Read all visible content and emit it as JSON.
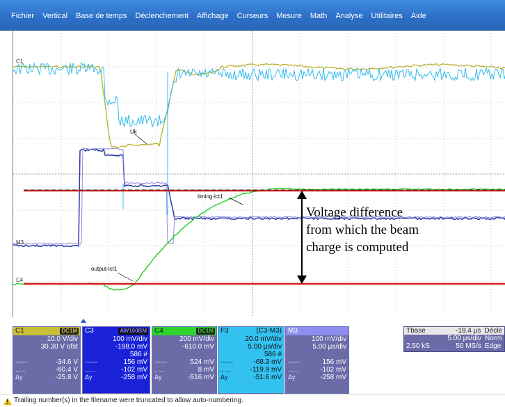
{
  "menu": [
    "Fichier",
    "Vertical",
    "Base de temps",
    "Déclenchement",
    "Affichage",
    "Curseurs",
    "Mesure",
    "Math",
    "Analyse",
    "Utilitaires",
    "Aide"
  ],
  "screen": {
    "channel_markers": {
      "c1": "C1",
      "m3": "M3",
      "c4": "C4"
    },
    "trace_labels": {
      "uk": "Uk",
      "timing": "timing-ict1",
      "output": "output-ict1"
    },
    "annotation": [
      "Voltage difference",
      "from which the beam",
      "charge is computed"
    ],
    "colors": {
      "c1": "#b8b02a",
      "c3": "#33bbee",
      "m3": "#2a3aa8",
      "m3_light": "#8b8be0",
      "c4": "#22cc22",
      "red": "#d42020",
      "grid": "#c8c8c8"
    }
  },
  "panels": {
    "c1": {
      "name": "C1",
      "badge": "DC1M",
      "rows": [
        [
          "",
          "10.0 V/div"
        ],
        [
          "",
          "30.30 V ofst"
        ],
        [
          "------",
          "-34.6 V"
        ],
        [
          "......",
          "-60.4 V"
        ],
        [
          "Δy",
          "-25.8 V"
        ]
      ]
    },
    "c3": {
      "name": "C3",
      "badge": "AW100BM",
      "rows": [
        [
          "",
          "100 mV/div"
        ],
        [
          "",
          "-198.0 mV"
        ],
        [
          "",
          "586 #"
        ],
        [
          "------",
          "156 mV"
        ],
        [
          "......",
          "-102 mV"
        ],
        [
          "Δy",
          "-258 mV"
        ]
      ]
    },
    "c4": {
      "name": "C4",
      "badge": "DC1M",
      "rows": [
        [
          "",
          "200 mV/div"
        ],
        [
          "",
          "-610.0 mV"
        ],
        [
          "",
          ""
        ],
        [
          "------",
          "524 mV"
        ],
        [
          "......",
          "8 mV"
        ],
        [
          "Δy",
          "-516 mV"
        ]
      ]
    },
    "f3": {
      "name": "F3",
      "formula": "(C3-M3)",
      "rows": [
        [
          "",
          "20.0 mV/div"
        ],
        [
          "",
          "5.00 μs/div"
        ],
        [
          "",
          "586 #"
        ],
        [
          "------",
          "-68.3 mV"
        ],
        [
          "......",
          "-119.9 mV"
        ],
        [
          "Δy",
          "-51.6 mV"
        ]
      ]
    },
    "m3": {
      "name": "M3",
      "rows": [
        [
          "",
          "100 mV/div"
        ],
        [
          "",
          "5.00 μs/div"
        ],
        [
          "",
          ""
        ],
        [
          "------",
          "156 mV"
        ],
        [
          "......",
          "-102 mV"
        ],
        [
          "Δy",
          "-258 mV"
        ]
      ]
    }
  },
  "timebase": {
    "header_left": "Tbase",
    "header_value": "-19.4 μs",
    "header_right": "Décle",
    "row2_value": "5.00 μs/div",
    "row2_right": "Norm",
    "row3_left": "2.50 kS",
    "row3_value": "50 MS/s",
    "row3_right": "Edge"
  },
  "status_text": "Trailing number(s) in the filename were truncated to allow auto-numbering.",
  "icons": {
    "warning": "warning-icon",
    "trigger": "trigger-marker-icon"
  }
}
